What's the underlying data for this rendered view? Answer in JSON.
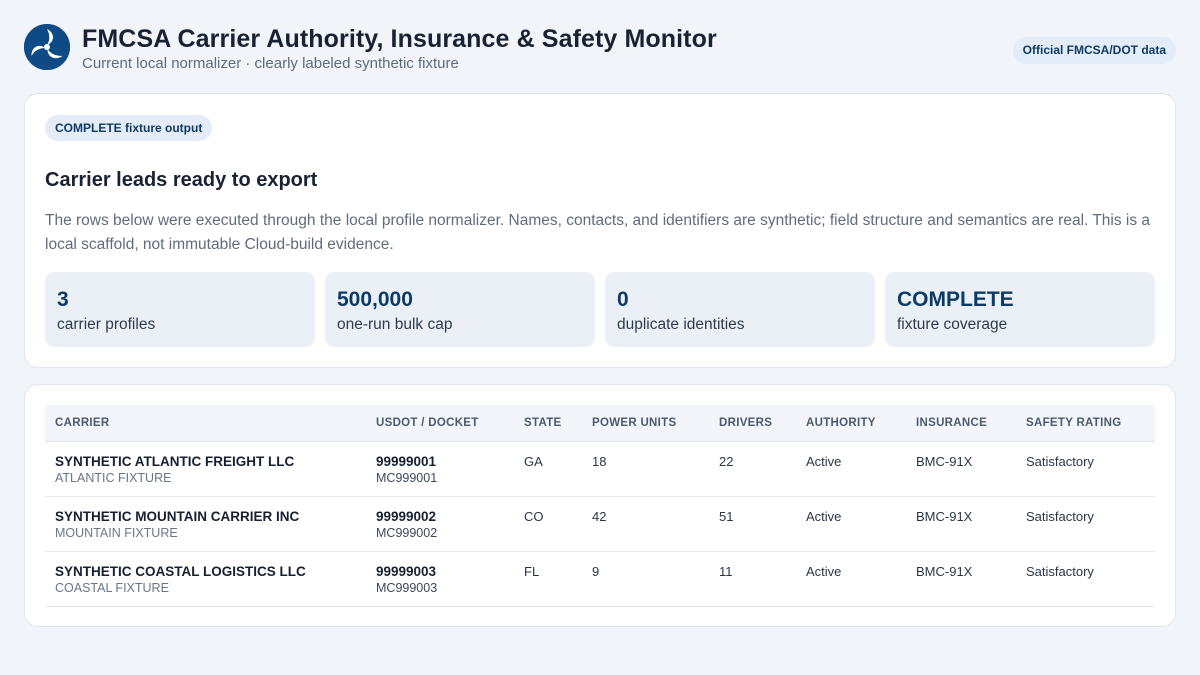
{
  "header": {
    "title": "FMCSA Carrier Authority, Insurance & Safety Monitor",
    "subtitle": "Current local normalizer · clearly labeled synthetic fixture",
    "badge": "Official FMCSA/DOT data",
    "logo_icon": "dot-triskelion-logo"
  },
  "summary": {
    "status_pill": "COMPLETE fixture output",
    "title": "Carrier leads ready to export",
    "description": "The rows below were executed through the local profile normalizer. Names, contacts, and identifiers are synthetic; field structure and semantics are real. This is a local scaffold, not immutable Cloud-build evidence.",
    "stats": [
      {
        "value": "3",
        "label": "carrier profiles"
      },
      {
        "value": "500,000",
        "label": "one-run bulk cap"
      },
      {
        "value": "0",
        "label": "duplicate identities"
      },
      {
        "value": "COMPLETE",
        "label": "fixture coverage"
      }
    ]
  },
  "table": {
    "columns": [
      "CARRIER",
      "USDOT / DOCKET",
      "STATE",
      "POWER UNITS",
      "DRIVERS",
      "AUTHORITY",
      "INSURANCE",
      "SAFETY RATING"
    ],
    "rows": [
      {
        "name": "SYNTHETIC ATLANTIC FREIGHT LLC",
        "sub": "ATLANTIC FIXTURE",
        "usdot": "99999001",
        "docket": "MC999001",
        "state": "GA",
        "power_units": "18",
        "drivers": "22",
        "authority": "Active",
        "insurance": "BMC-91X",
        "safety": "Satisfactory"
      },
      {
        "name": "SYNTHETIC MOUNTAIN CARRIER INC",
        "sub": "MOUNTAIN FIXTURE",
        "usdot": "99999002",
        "docket": "MC999002",
        "state": "CO",
        "power_units": "42",
        "drivers": "51",
        "authority": "Active",
        "insurance": "BMC-91X",
        "safety": "Satisfactory"
      },
      {
        "name": "SYNTHETIC COASTAL LOGISTICS LLC",
        "sub": "COASTAL FIXTURE",
        "usdot": "99999003",
        "docket": "MC999003",
        "state": "FL",
        "power_units": "9",
        "drivers": "11",
        "authority": "Active",
        "insurance": "BMC-91X",
        "safety": "Satisfactory"
      }
    ]
  },
  "colors": {
    "accent": "#0e4b86",
    "accent_dark": "#0e3b66",
    "background": "#f1f4f8"
  }
}
